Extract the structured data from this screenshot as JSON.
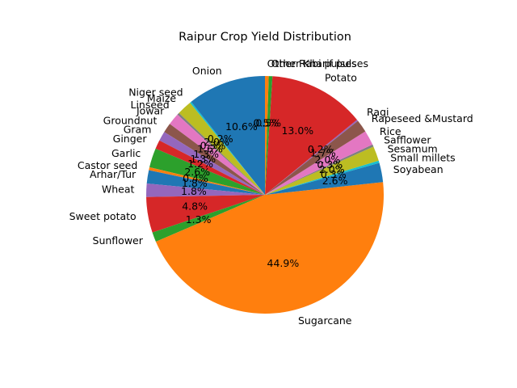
{
  "chart_data": {
    "type": "pie",
    "title": "Raipur Crop Yield Distribution",
    "start_angle_deg": 90,
    "direction": "counterclockwise",
    "legend": "none",
    "slices": [
      {
        "label": "Onion",
        "value": 10.6,
        "pct_text": "10.6%",
        "color": "#1f77b4"
      },
      {
        "label": "Niger seed",
        "value": 0.2,
        "pct_text": "0.2%",
        "color": "#17becf"
      },
      {
        "label": "Maize",
        "value": 2.0,
        "pct_text": "2.0%",
        "color": "#bcbd22"
      },
      {
        "label": "Linseed",
        "value": 0.3,
        "pct_text": "0.3%",
        "color": "#7f7f7f"
      },
      {
        "label": "Jowar",
        "value": 1.6,
        "pct_text": "1.6%",
        "color": "#e377c2"
      },
      {
        "label": "Groundnut",
        "value": 1.3,
        "pct_text": "1.3%",
        "color": "#8c564b"
      },
      {
        "label": "Gram",
        "value": 1.3,
        "pct_text": "1.3%",
        "color": "#9467bd"
      },
      {
        "label": "Ginger",
        "value": 1.2,
        "pct_text": "1.2%",
        "color": "#d62728"
      },
      {
        "label": "Garlic",
        "value": 2.6,
        "pct_text": "2.6%",
        "color": "#2ca02c"
      },
      {
        "label": "Castor seed",
        "value": 0.4,
        "pct_text": "0.4%",
        "color": "#ff7f0e"
      },
      {
        "label": "Arhar/Tur",
        "value": 1.8,
        "pct_text": "1.8%",
        "color": "#1f77b4"
      },
      {
        "label": "Wheat",
        "value": 1.8,
        "pct_text": "1.8%",
        "color": "#9467bd"
      },
      {
        "label": "Sweet potato",
        "value": 4.8,
        "pct_text": "4.8%",
        "color": "#d62728"
      },
      {
        "label": "Sunflower",
        "value": 1.3,
        "pct_text": "1.3%",
        "color": "#2ca02c"
      },
      {
        "label": "Sugarcane",
        "value": 44.9,
        "pct_text": "44.9%",
        "color": "#ff7f0e"
      },
      {
        "label": "Soyabean",
        "value": 2.6,
        "pct_text": "2.6%",
        "color": "#1f77b4"
      },
      {
        "label": "Small millets",
        "value": 0.3,
        "pct_text": "0.3%",
        "color": "#17becf"
      },
      {
        "label": "Sesamum",
        "value": 2.0,
        "pct_text": "2.0%",
        "color": "#bcbd22"
      },
      {
        "label": "Safflower",
        "value": 0.3,
        "pct_text": "0.3%",
        "color": "#7f7f7f"
      },
      {
        "label": "Rice",
        "value": 2.0,
        "pct_text": "2.0%",
        "color": "#e377c2"
      },
      {
        "label": "Rapeseed &Mustard",
        "value": 1.7,
        "pct_text": "1.7%",
        "color": "#8c564b"
      },
      {
        "label": "Ragi",
        "value": 0.2,
        "pct_text": "0.2%",
        "color": "#9467bd"
      },
      {
        "label": "Potato",
        "value": 13.0,
        "pct_text": "13.0%",
        "color": "#d62728"
      },
      {
        "label": "Other Kharif pulses",
        "value": 0.5,
        "pct_text": "0.5%",
        "color": "#2ca02c"
      },
      {
        "label": "Other Rabi pulses",
        "value": 0.5,
        "pct_text": "0.5%",
        "color": "#ff7f0e"
      }
    ]
  }
}
